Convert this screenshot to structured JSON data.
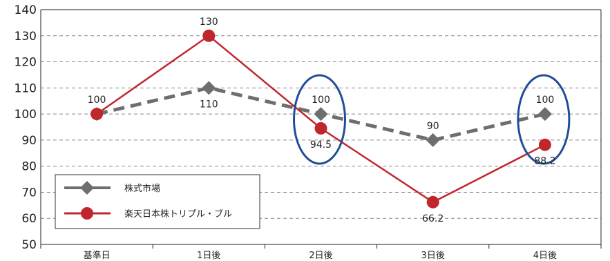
{
  "chart_data": {
    "type": "line",
    "categories": [
      "基準日",
      "1日後",
      "2日後",
      "3日後",
      "4日後"
    ],
    "ylim": [
      50,
      140
    ],
    "yticks": [
      50,
      60,
      70,
      80,
      90,
      100,
      110,
      120,
      130,
      140
    ],
    "grid": true,
    "legend_position": "bottom-left",
    "series": [
      {
        "name": "株式市場",
        "values": [
          100,
          110,
          100,
          90,
          100
        ],
        "labels": [
          "100",
          "110",
          "100",
          "90",
          "100"
        ],
        "color": "#6e6e6e",
        "line_style": "dashed",
        "marker": "diamond"
      },
      {
        "name": "楽天日本株トリプル・ブル",
        "values": [
          100,
          130,
          94.5,
          66.2,
          88.2
        ],
        "labels": [
          "",
          "130",
          "94.5",
          "66.2",
          "88.2"
        ],
        "color": "#c0272d",
        "line_style": "solid",
        "marker": "circle"
      }
    ],
    "highlights": [
      "2日後",
      "4日後"
    ],
    "highlight_color": "#1f4e99"
  }
}
